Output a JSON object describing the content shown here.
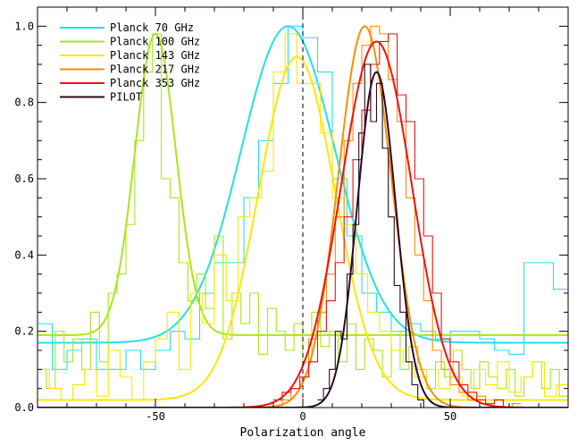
{
  "chart_data": {
    "type": "line",
    "title": "",
    "xlabel": "Polarization angle",
    "ylabel": "",
    "xlim": [
      -90,
      90
    ],
    "ylim": [
      0,
      1.05
    ],
    "x_ticks": [
      -50,
      0,
      50
    ],
    "y_ticks": [
      0.0,
      0.2,
      0.4,
      0.6,
      0.8,
      1.0
    ],
    "x_tick_labels": [
      "-50",
      "0",
      "50"
    ],
    "y_tick_labels": [
      "0.0",
      "0.2",
      "0.4",
      "0.6",
      "0.8",
      "1.0"
    ],
    "reference_line": {
      "x": 0,
      "style": "dashed"
    },
    "legend": {
      "position": "top-left"
    },
    "grid": false,
    "series": [
      {
        "name": "Planck 70 GHz",
        "color": "#22e0e8",
        "fit": {
          "type": "gaussian",
          "center": -5,
          "sigma": 16,
          "amplitude": 0.83,
          "offset": 0.17
        },
        "histogram": {
          "x": [
            -90,
            -85,
            -80,
            -75,
            -70,
            -65,
            -60,
            -55,
            -50,
            -45,
            -40,
            -35,
            -30,
            -25,
            -20,
            -15,
            -10,
            -5,
            0,
            5,
            10,
            15,
            20,
            25,
            30,
            35,
            40,
            45,
            50,
            55,
            60,
            65,
            70,
            75,
            80,
            85
          ],
          "y": [
            0.22,
            0.1,
            0.15,
            0.18,
            0.1,
            0.1,
            0.15,
            0.1,
            0.15,
            0.2,
            0.18,
            0.3,
            0.38,
            0.38,
            0.55,
            0.7,
            0.85,
            1.0,
            0.97,
            0.88,
            0.6,
            0.45,
            0.3,
            0.25,
            0.2,
            0.22,
            0.2,
            0.18,
            0.2,
            0.2,
            0.18,
            0.15,
            0.14,
            0.38,
            0.38,
            0.31
          ]
        }
      },
      {
        "name": "Planck 100 GHz",
        "color": "#a8e61d",
        "fit": {
          "type": "gaussian",
          "center": -50,
          "sigma": 7,
          "amplitude": 0.79,
          "offset": 0.19
        },
        "histogram": {
          "x": [
            -90,
            -87,
            -84,
            -81,
            -78,
            -75,
            -72,
            -69,
            -66,
            -63,
            -60,
            -57,
            -54,
            -51,
            -48,
            -45,
            -42,
            -39,
            -36,
            -33,
            -30,
            -27,
            -24,
            -21,
            -18,
            -15,
            -12,
            -9,
            -6,
            -3,
            0,
            3,
            6,
            9,
            12,
            15,
            18,
            21,
            24,
            27,
            30,
            33,
            36,
            39,
            42,
            45,
            48,
            51,
            54,
            57,
            60,
            63,
            66,
            69,
            72,
            75,
            78,
            81,
            84,
            87
          ],
          "y": [
            0.1,
            0.05,
            0.2,
            0.12,
            0.18,
            0.1,
            0.25,
            0.12,
            0.3,
            0.35,
            0.48,
            0.7,
            0.88,
            0.98,
            0.6,
            0.55,
            0.38,
            0.28,
            0.35,
            0.26,
            0.45,
            0.18,
            0.3,
            0.22,
            0.3,
            0.14,
            0.26,
            0.2,
            0.15,
            0.22,
            0.12,
            0.25,
            0.16,
            0.2,
            0.12,
            0.22,
            0.1,
            0.18,
            0.15,
            0.08,
            0.2,
            0.1,
            0.16,
            0.1,
            0.05,
            0.12,
            0.08,
            0.15,
            0.1,
            0.05,
            0.12,
            0.08,
            0.05,
            0.1,
            0.03,
            0.08,
            0.12,
            0.05,
            0.1,
            0.03
          ]
        }
      },
      {
        "name": "Planck 143 GHz",
        "color": "#ffe600",
        "fit": {
          "type": "gaussian",
          "center": -2,
          "sigma": 13,
          "amplitude": 0.9,
          "offset": 0.02
        },
        "histogram": {
          "x": [
            -90,
            -86,
            -82,
            -78,
            -74,
            -70,
            -66,
            -62,
            -58,
            -54,
            -50,
            -46,
            -42,
            -38,
            -34,
            -30,
            -26,
            -22,
            -18,
            -14,
            -10,
            -6,
            -2,
            2,
            6,
            10,
            14,
            18,
            22,
            26,
            30,
            34,
            38,
            42,
            46,
            50,
            54,
            58,
            62,
            66,
            70,
            74,
            78,
            82,
            86
          ],
          "y": [
            0.1,
            0.05,
            0.02,
            0.06,
            0.1,
            0.03,
            0.15,
            0.08,
            0.02,
            0.12,
            0.18,
            0.25,
            0.1,
            0.3,
            0.22,
            0.4,
            0.28,
            0.5,
            0.55,
            0.62,
            0.88,
            0.98,
            0.85,
            0.85,
            0.72,
            0.55,
            0.48,
            0.35,
            0.25,
            0.2,
            0.15,
            0.12,
            0.08,
            0.1,
            0.05,
            0.08,
            0.03,
            0.1,
            0.06,
            0.12,
            0.04,
            0.08,
            0.12,
            0.03,
            0.06
          ]
        }
      },
      {
        "name": "Planck 217 GHz",
        "color": "#ff8c00",
        "fit": {
          "type": "gaussian",
          "center": 21,
          "sigma": 9,
          "amplitude": 1.0,
          "offset": 0.0
        },
        "histogram": {
          "x": [
            -10,
            -7,
            -4,
            -1,
            2,
            5,
            8,
            11,
            14,
            17,
            20,
            23,
            26,
            29,
            32,
            35,
            38,
            41,
            44,
            47,
            50,
            53,
            56,
            59,
            62,
            65,
            68,
            71
          ],
          "y": [
            0.0,
            0.02,
            0.05,
            0.08,
            0.18,
            0.25,
            0.35,
            0.5,
            0.7,
            0.85,
            0.95,
            1.0,
            0.98,
            0.86,
            0.75,
            0.55,
            0.4,
            0.28,
            0.15,
            0.1,
            0.06,
            0.04,
            0.02,
            0.03,
            0.01,
            0.02,
            0.0,
            0.01
          ]
        }
      },
      {
        "name": "Planck 353 GHz",
        "color": "#ee1111",
        "fit": {
          "type": "gaussian",
          "center": 25,
          "sigma": 12,
          "amplitude": 0.96,
          "offset": 0.0
        },
        "histogram": {
          "x": [
            -10,
            -7,
            -4,
            -1,
            2,
            5,
            8,
            11,
            14,
            17,
            20,
            23,
            26,
            29,
            32,
            35,
            38,
            41,
            44,
            47,
            50,
            53,
            56,
            59,
            62,
            65,
            68
          ],
          "y": [
            0.02,
            0.04,
            0.05,
            0.08,
            0.12,
            0.2,
            0.28,
            0.38,
            0.5,
            0.65,
            0.78,
            0.9,
            0.96,
            0.98,
            0.82,
            0.75,
            0.6,
            0.45,
            0.3,
            0.18,
            0.12,
            0.06,
            0.04,
            0.02,
            0.01,
            0.02,
            0.0
          ]
        }
      },
      {
        "name": "PILOT",
        "color": "#2a0a1e",
        "fit": {
          "type": "gaussian",
          "center": 25,
          "sigma": 6.5,
          "amplitude": 0.88,
          "offset": 0.0
        },
        "histogram": {
          "x": [
            5,
            7,
            9,
            11,
            13,
            15,
            17,
            19,
            21,
            23,
            25,
            27,
            29,
            31,
            33,
            35,
            37,
            39,
            41
          ],
          "y": [
            0.02,
            0.05,
            0.1,
            0.2,
            0.18,
            0.35,
            0.48,
            0.72,
            0.9,
            0.75,
            0.85,
            0.68,
            0.5,
            0.32,
            0.25,
            0.12,
            0.06,
            0.02,
            0.0
          ]
        }
      }
    ]
  }
}
